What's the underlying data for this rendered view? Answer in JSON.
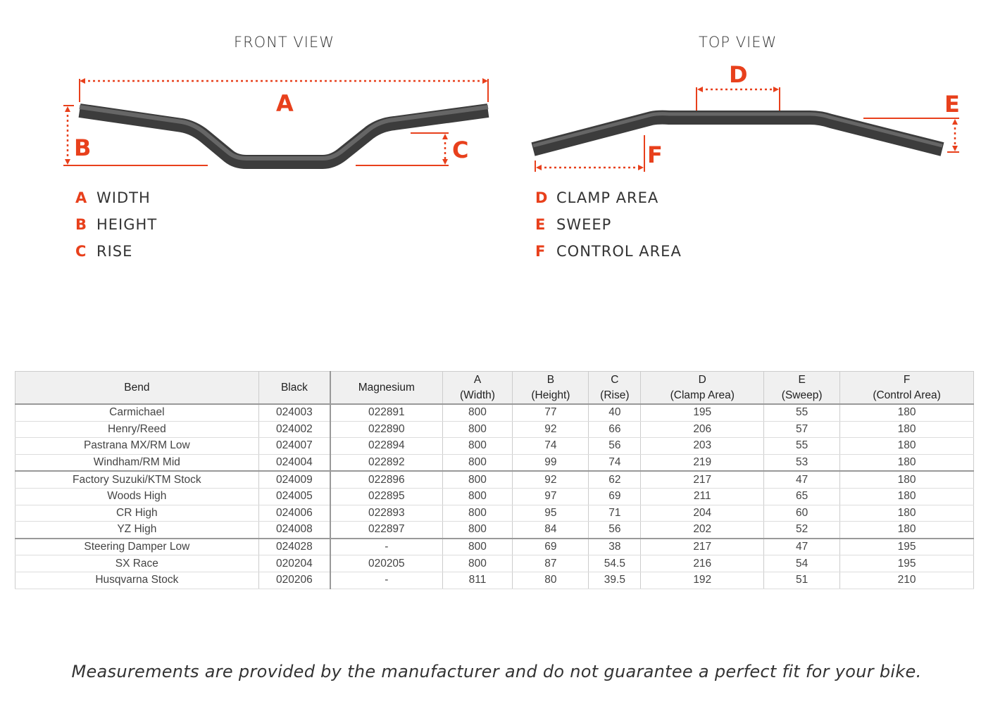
{
  "front_view": {
    "title": "FRONT VIEW",
    "labels": {
      "a": "A",
      "b": "B",
      "c": "C"
    },
    "legend": [
      {
        "key": "A",
        "label": "WIDTH"
      },
      {
        "key": "B",
        "label": "HEIGHT"
      },
      {
        "key": "C",
        "label": "RISE"
      }
    ]
  },
  "top_view": {
    "title": "TOP VIEW",
    "labels": {
      "d": "D",
      "e": "E",
      "f": "F"
    },
    "legend": [
      {
        "key": "D",
        "label": "CLAMP AREA"
      },
      {
        "key": "E",
        "label": "SWEEP"
      },
      {
        "key": "F",
        "label": "CONTROL AREA"
      }
    ]
  },
  "colors": {
    "accent": "#e8401c",
    "bar": "#4a4a4a"
  },
  "table": {
    "headers": [
      {
        "top": "",
        "bottom": "Bend"
      },
      {
        "top": "",
        "bottom": "Black"
      },
      {
        "top": "",
        "bottom": "Magnesium"
      },
      {
        "top": "A",
        "bottom": "(Width)"
      },
      {
        "top": "B",
        "bottom": "(Height)"
      },
      {
        "top": "C",
        "bottom": "(Rise)"
      },
      {
        "top": "D",
        "bottom": "(Clamp Area)"
      },
      {
        "top": "E",
        "bottom": "(Sweep)"
      },
      {
        "top": "F",
        "bottom": "(Control Area)"
      }
    ],
    "rows": [
      [
        "Carmichael",
        "024003",
        "022891",
        "800",
        "77",
        "40",
        "195",
        "55",
        "180"
      ],
      [
        "Henry/Reed",
        "024002",
        "022890",
        "800",
        "92",
        "66",
        "206",
        "57",
        "180"
      ],
      [
        "Pastrana MX/RM Low",
        "024007",
        "022894",
        "800",
        "74",
        "56",
        "203",
        "55",
        "180"
      ],
      [
        "Windham/RM Mid",
        "024004",
        "022892",
        "800",
        "99",
        "74",
        "219",
        "53",
        "180"
      ],
      [
        "Factory Suzuki/KTM Stock",
        "024009",
        "022896",
        "800",
        "92",
        "62",
        "217",
        "47",
        "180"
      ],
      [
        "Woods High",
        "024005",
        "022895",
        "800",
        "97",
        "69",
        "211",
        "65",
        "180"
      ],
      [
        "CR High",
        "024006",
        "022893",
        "800",
        "95",
        "71",
        "204",
        "60",
        "180"
      ],
      [
        "YZ High",
        "024008",
        "022897",
        "800",
        "84",
        "56",
        "202",
        "52",
        "180"
      ],
      [
        "Steering Damper Low",
        "024028",
        "-",
        "800",
        "69",
        "38",
        "217",
        "47",
        "195"
      ],
      [
        "SX Race",
        "020204",
        "020205",
        "800",
        "87",
        "54.5",
        "216",
        "54",
        "195"
      ],
      [
        "Husqvarna Stock",
        "020206",
        "-",
        "811",
        "80",
        "39.5",
        "192",
        "51",
        "210"
      ]
    ]
  },
  "footer": "Measurements are provided by the manufacturer and do not guarantee a perfect fit for your bike."
}
